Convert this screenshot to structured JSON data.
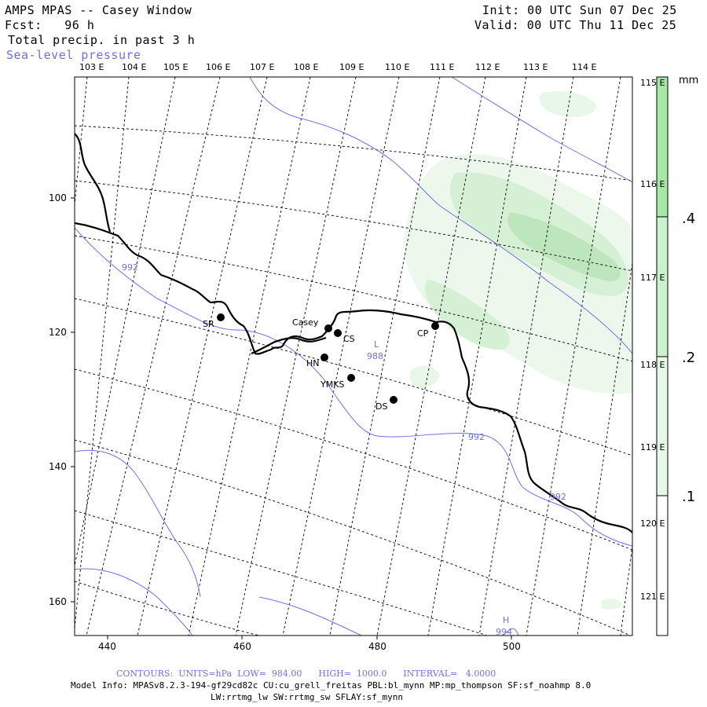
{
  "header": {
    "title": "AMPS MPAS -- Casey Window",
    "fcst": "Fcst:   96 h",
    "field": "Total precip. in past 3 h",
    "overlay": "Sea-level pressure",
    "init": "Init: 00 UTC Sun 07 Dec 25",
    "valid": "Valid: 00 UTC Thu 11 Dec 25"
  },
  "map": {
    "lon_labels": [
      "103 E",
      "104 E",
      "105 E",
      "106 E",
      "107 E",
      "108 E",
      "109 E",
      "110 E",
      "111 E",
      "112 E",
      "113 E",
      "114 E"
    ],
    "lat_labels_right": [
      "115 E",
      "116 E",
      "117 E",
      "118 E",
      "119 E",
      "120 E",
      "121 E"
    ],
    "x_ticks": [
      "440",
      "460",
      "480",
      "500"
    ],
    "y_ticks": [
      "100",
      "120",
      "140",
      "160"
    ],
    "stations": [
      {
        "name": "SR"
      },
      {
        "name": "Casey"
      },
      {
        "name": "CS"
      },
      {
        "name": "HN"
      },
      {
        "name": "YMKS"
      },
      {
        "name": "DS"
      },
      {
        "name": "CP"
      }
    ],
    "pressure_labels": [
      "992",
      "992",
      "992",
      "L",
      "988",
      "H",
      "994"
    ],
    "colors": {
      "coast": "#000000",
      "isobar": "#6f6fe6",
      "precip_light": "#e6f6e6",
      "precip_mid": "#c8ecc8",
      "precip_dark": "#a6dea6"
    }
  },
  "colorbar": {
    "unit": "mm",
    "labels": [
      ".4",
      ".2",
      ".1"
    ],
    "colors": [
      "#a6e8a6",
      "#ccf2cc",
      "#e6f8e6"
    ]
  },
  "footer": {
    "contours": "CONTOURS:  UNITS=hPa  LOW=  984.00      HIGH=  1000.0      INTERVAL=   4.0000",
    "model_info": "Model Info: MPASv8.2.3-194-gf29cd82c CU:cu_grell_freitas PBL:bl_mynn MP:mp_thompson SF:sf_noahmp 8.0",
    "model_info2": "LW:rrtmg_lw SW:rrtmg_sw SFLAY:sf_mynn"
  }
}
